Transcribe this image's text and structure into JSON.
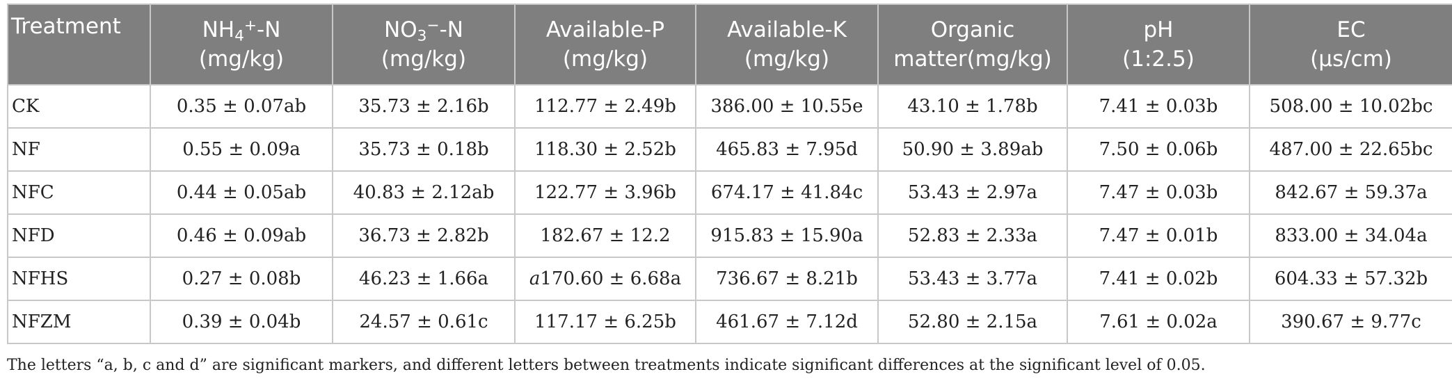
{
  "table": {
    "headers": [
      {
        "line1": "Treatment",
        "line2": ""
      },
      {
        "line1_pre": "NH",
        "line1_sub": "4",
        "line1_sup": "+",
        "line1_post": "-N",
        "line2": "(mg/kg)"
      },
      {
        "line1_pre": "NO",
        "line1_sub": "3",
        "line1_sup": "−",
        "line1_post": "-N",
        "line2": "(mg/kg)"
      },
      {
        "line1": "Available-P",
        "line2": "(mg/kg)"
      },
      {
        "line1": "Available-K",
        "line2": "(mg/kg)"
      },
      {
        "line1": "Organic",
        "line2": "matter(mg/kg)"
      },
      {
        "line1": "pH",
        "line2": "(1:2.5)"
      },
      {
        "line1": "EC",
        "line2": "(μs/cm)"
      }
    ],
    "rows": [
      {
        "treatment": "CK",
        "nh4": "0.35 ± 0.07ab",
        "no3": "35.73 ± 2.16b",
        "avail_p_prefix": "",
        "avail_p": "112.77 ± 2.49b",
        "avail_k": "386.00 ± 10.55e",
        "om": "43.10 ± 1.78b",
        "ph": "7.41 ± 0.03b",
        "ec": "508.00 ± 10.02bc"
      },
      {
        "treatment": "NF",
        "nh4": "0.55 ± 0.09a",
        "no3": "35.73 ± 0.18b",
        "avail_p_prefix": "",
        "avail_p": "118.30 ± 2.52b",
        "avail_k": "465.83 ± 7.95d",
        "om": "50.90 ± 3.89ab",
        "ph": "7.50 ± 0.06b",
        "ec": "487.00 ± 22.65bc"
      },
      {
        "treatment": "NFC",
        "nh4": "0.44 ± 0.05ab",
        "no3": "40.83 ± 2.12ab",
        "avail_p_prefix": "",
        "avail_p": "122.77 ± 3.96b",
        "avail_k": "674.17 ± 41.84c",
        "om": "53.43 ± 2.97a",
        "ph": "7.47 ± 0.03b",
        "ec": "842.67 ± 59.37a"
      },
      {
        "treatment": "NFD",
        "nh4": "0.46 ± 0.09ab",
        "no3": "36.73 ± 2.82b",
        "avail_p_prefix": "",
        "avail_p": "182.67 ± 12.2",
        "avail_k": "915.83 ± 15.90a",
        "om": "52.83 ± 2.33a",
        "ph": "7.47 ± 0.01b",
        "ec": "833.00 ± 34.04a"
      },
      {
        "treatment": "NFHS",
        "nh4": "0.27 ± 0.08b",
        "no3": "46.23 ± 1.66a",
        "avail_p_prefix": "a",
        "avail_p": "170.60 ± 6.68a",
        "avail_k": "736.67 ± 8.21b",
        "om": "53.43 ± 3.77a",
        "ph": "7.41 ± 0.02b",
        "ec": "604.33 ± 57.32b"
      },
      {
        "treatment": "NFZM",
        "nh4": "0.39 ± 0.04b",
        "no3": "24.57 ± 0.61c",
        "avail_p_prefix": "",
        "avail_p": "117.17 ± 6.25b",
        "avail_k": "461.67 ± 7.12d",
        "om": "52.80 ± 2.15a",
        "ph": "7.61 ± 0.02a",
        "ec": "390.67 ± 9.77c"
      }
    ]
  },
  "footnote": "The letters “a, b, c and d” are significant markers, and different letters between treatments indicate significant differences at the significant level of 0.05.",
  "colors": {
    "header_bg": "#7f7f7f",
    "header_text": "#ffffff",
    "grid": "#c8c8c8",
    "body_text": "#222222"
  }
}
